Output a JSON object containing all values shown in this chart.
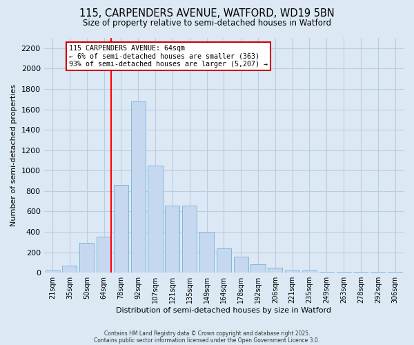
{
  "title_line1": "115, CARPENDERS AVENUE, WATFORD, WD19 5BN",
  "title_line2": "Size of property relative to semi-detached houses in Watford",
  "xlabel": "Distribution of semi-detached houses by size in Watford",
  "ylabel": "Number of semi-detached properties",
  "categories": [
    "21sqm",
    "35sqm",
    "50sqm",
    "64sqm",
    "78sqm",
    "92sqm",
    "107sqm",
    "121sqm",
    "135sqm",
    "149sqm",
    "164sqm",
    "178sqm",
    "192sqm",
    "206sqm",
    "221sqm",
    "235sqm",
    "249sqm",
    "263sqm",
    "278sqm",
    "292sqm",
    "306sqm"
  ],
  "values": [
    20,
    70,
    290,
    350,
    860,
    1680,
    1050,
    660,
    660,
    400,
    240,
    160,
    80,
    50,
    25,
    25,
    10,
    10,
    5,
    5,
    5
  ],
  "bar_color": "#c5d8f0",
  "bar_edge_color": "#7fb8d8",
  "red_line_index": 3,
  "annotation_title": "115 CARPENDERS AVENUE: 64sqm",
  "annotation_line1": "← 6% of semi-detached houses are smaller (363)",
  "annotation_line2": "93% of semi-detached houses are larger (5,207) →",
  "annotation_box_color": "#ffffff",
  "annotation_box_edge_color": "#cc0000",
  "ylim": [
    0,
    2300
  ],
  "yticks": [
    0,
    200,
    400,
    600,
    800,
    1000,
    1200,
    1400,
    1600,
    1800,
    2000,
    2200
  ],
  "grid_color": "#b8cce4",
  "background_color": "#dce9f5",
  "footer_line1": "Contains HM Land Registry data © Crown copyright and database right 2025.",
  "footer_line2": "Contains public sector information licensed under the Open Government Licence 3.0."
}
